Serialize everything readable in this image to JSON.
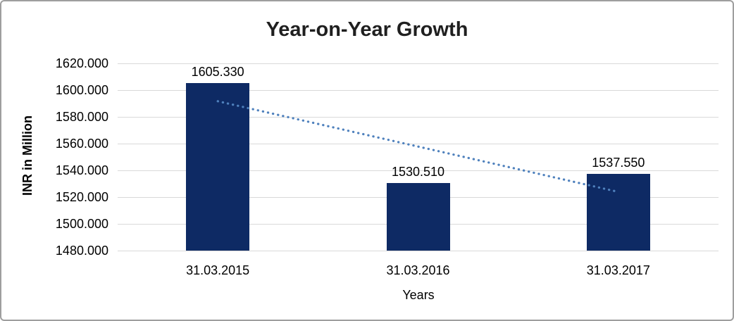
{
  "chart_data": {
    "type": "bar",
    "title": "Year-on-Year Growth",
    "xlabel": "Years",
    "ylabel": "INR in Million",
    "categories": [
      "31.03.2015",
      "31.03.2016",
      "31.03.2017"
    ],
    "values": [
      1605.33,
      1530.51,
      1537.55
    ],
    "data_labels": [
      "1605.330",
      "1530.510",
      "1537.550"
    ],
    "y_ticks": [
      "1620.000",
      "1600.000",
      "1580.000",
      "1560.000",
      "1540.000",
      "1520.000",
      "1500.000",
      "1480.000"
    ],
    "ylim": [
      1480,
      1620
    ],
    "y_step": 20,
    "grid": true,
    "legend": false,
    "trendline": {
      "type": "linear",
      "style": "dotted"
    },
    "colors": {
      "bar": "#0e2a64",
      "gridline": "#d9d9d9",
      "trendline": "#4f81bd",
      "title_text": "#1f1f1f",
      "axis_text": "#000000",
      "frame_border": "#9e9e9e",
      "background": "#ffffff"
    }
  }
}
